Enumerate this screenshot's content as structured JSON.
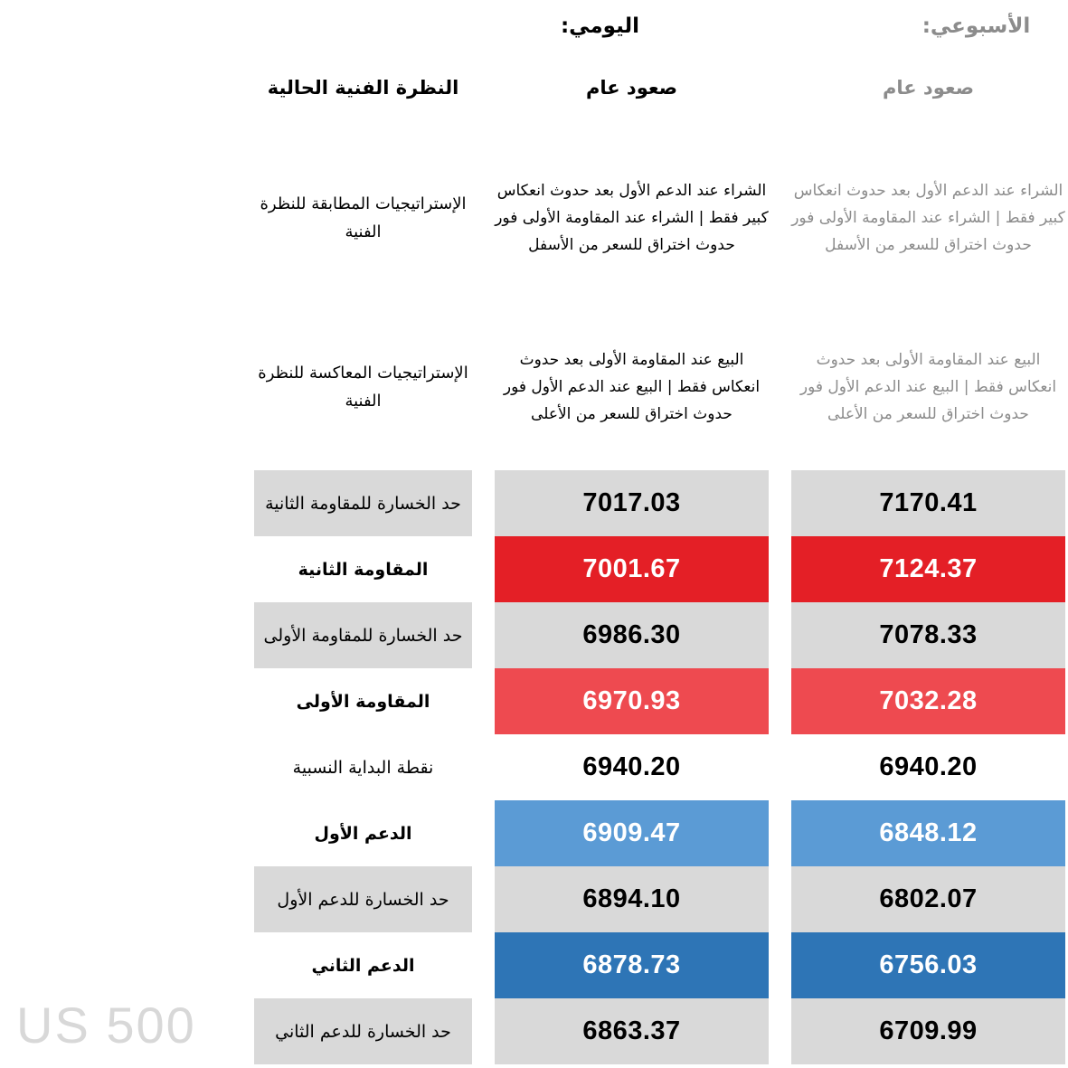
{
  "columns": {
    "weekly": {
      "title": "الأسبوعي:",
      "outlook": "صعود عام"
    },
    "daily": {
      "title": "اليومي:",
      "outlook": "صعود عام"
    },
    "labels": {
      "outlook_title": "النظرة الفنية الحالية"
    }
  },
  "strategies": {
    "matching": {
      "label": "الإستراتيجيات المطابقة للنظرة الفنية",
      "daily": "الشراء عند الدعم الأول بعد حدوث انعكاس كبير فقط | الشراء عند المقاومة الأولى فور حدوث اختراق للسعر من الأسفل",
      "weekly": "الشراء عند الدعم الأول بعد حدوث انعكاس كبير فقط | الشراء عند المقاومة الأولى فور حدوث اختراق للسعر من الأسفل"
    },
    "opposite": {
      "label": "الإستراتيجيات المعاكسة للنظرة الفنية",
      "daily": "البيع عند المقاومة الأولى بعد حدوث انعكاس فقط | البيع عند الدعم الأول فور حدوث اختراق للسعر من الأعلى",
      "weekly": "البيع عند المقاومة الأولى بعد حدوث انعكاس فقط | البيع عند الدعم الأول فور حدوث اختراق للسعر من الأعلى"
    }
  },
  "table": {
    "rows": [
      {
        "key": "stop-loss-resistance-2",
        "label": "حد الخسارة للمقاومة الثانية",
        "daily": "7017.03",
        "weekly": "7170.41",
        "label_bg": "#d9d9d9",
        "value_bg": "#d9d9d9",
        "value_fg": "#000000"
      },
      {
        "key": "resistance-2",
        "label": "المقاومة الثانية",
        "daily": "7001.67",
        "weekly": "7124.37",
        "label_bg": "transparent",
        "value_bg": "#e41f26",
        "value_fg": "#ffffff"
      },
      {
        "key": "stop-loss-resistance-1",
        "label": "حد الخسارة للمقاومة الأولى",
        "daily": "6986.30",
        "weekly": "7078.33",
        "label_bg": "#d9d9d9",
        "value_bg": "#d9d9d9",
        "value_fg": "#000000"
      },
      {
        "key": "resistance-1",
        "label": "المقاومة الأولى",
        "daily": "6970.93",
        "weekly": "7032.28",
        "label_bg": "transparent",
        "value_bg": "#ee4a50",
        "value_fg": "#ffffff"
      },
      {
        "key": "pivot-point",
        "label": "نقطة البداية النسبية",
        "daily": "6940.20",
        "weekly": "6940.20",
        "label_bg": "transparent",
        "value_bg": "transparent",
        "value_fg": "#000000"
      },
      {
        "key": "support-1",
        "label": "الدعم الأول",
        "daily": "6909.47",
        "weekly": "6848.12",
        "label_bg": "transparent",
        "value_bg": "#5b9bd5",
        "value_fg": "#ffffff"
      },
      {
        "key": "stop-loss-support-1",
        "label": "حد الخسارة للدعم الأول",
        "daily": "6894.10",
        "weekly": "6802.07",
        "label_bg": "#d9d9d9",
        "value_bg": "#d9d9d9",
        "value_fg": "#000000"
      },
      {
        "key": "support-2",
        "label": "الدعم الثاني",
        "daily": "6878.73",
        "weekly": "6756.03",
        "label_bg": "transparent",
        "value_bg": "#2e75b6",
        "value_fg": "#ffffff"
      },
      {
        "key": "stop-loss-support-2",
        "label": "حد الخسارة للدعم الثاني",
        "daily": "6863.37",
        "weekly": "6709.99",
        "label_bg": "#d9d9d9",
        "value_bg": "#d9d9d9",
        "value_fg": "#000000"
      }
    ]
  },
  "colors": {
    "resistance_strong": "#e41f26",
    "resistance_light": "#ee4a50",
    "support_light": "#5b9bd5",
    "support_strong": "#2e75b6",
    "neutral_cell": "#d9d9d9",
    "muted_text": "#8c8c8c",
    "watermark": "#d8d8d8"
  },
  "watermark": "US 500"
}
